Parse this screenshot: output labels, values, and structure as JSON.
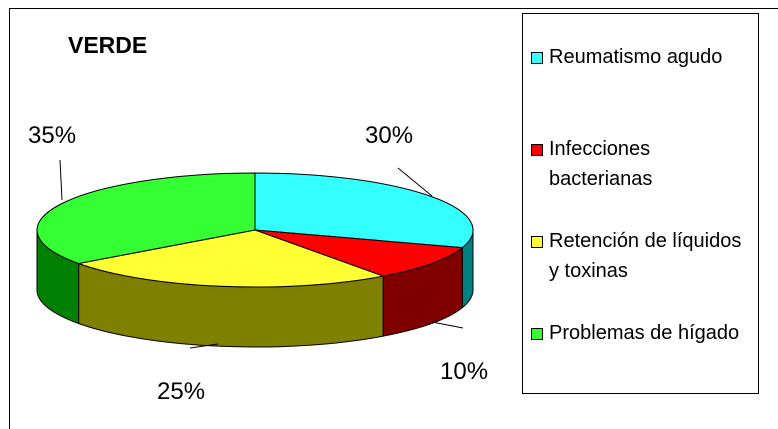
{
  "chart_data": {
    "type": "pie",
    "title": "VERDE",
    "categories": [
      "Reumatismo agudo",
      "Infecciones bacterianas",
      "Retención de líquidos y toxinas",
      "Problemas de hígado"
    ],
    "values": [
      30,
      10,
      25,
      35
    ],
    "value_labels": [
      "30%",
      "10%",
      "25%",
      "35%"
    ],
    "colors": [
      "#33ffff",
      "#ff0000",
      "#ffff33",
      "#33ff33"
    ],
    "side_colors": [
      "#008080",
      "#800000",
      "#808000",
      "#008000"
    ],
    "legend": "right"
  }
}
